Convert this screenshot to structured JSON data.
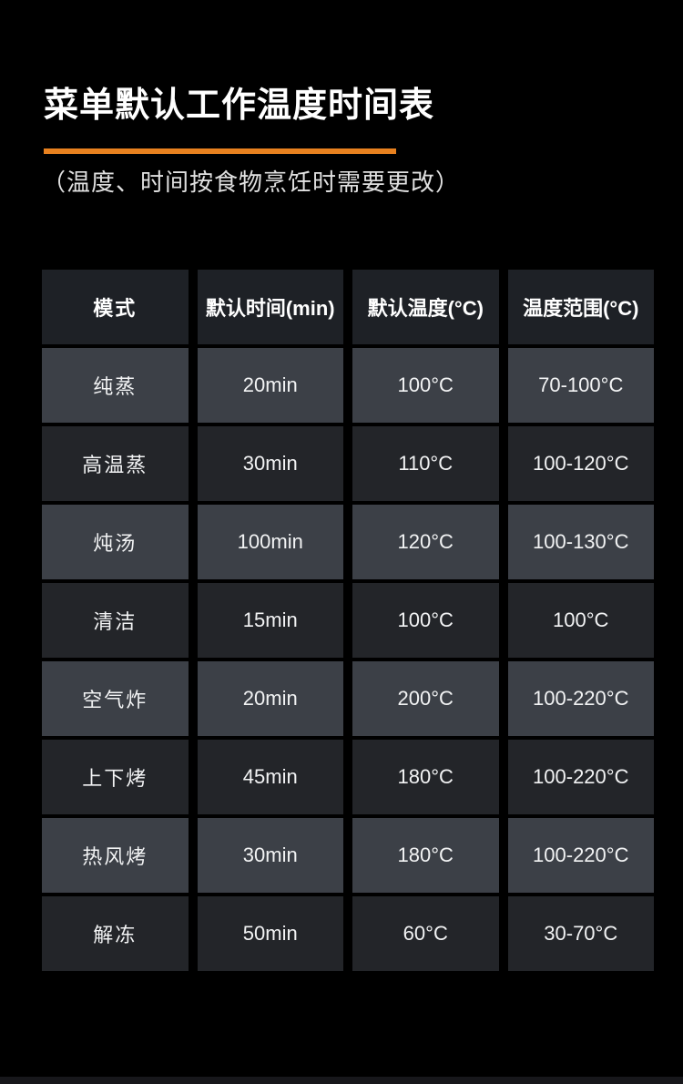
{
  "page": {
    "title": "菜单默认工作温度时间表",
    "subtitle": "（温度、时间按食物烹饪时需要更改）",
    "background_color": "#000000",
    "accent_color": "#e8811f",
    "light_row_color": "#3c4047",
    "dark_row_color": "#232529",
    "header_row_color": "#1e2126"
  },
  "table": {
    "columns": [
      "模式",
      "默认时间(min)",
      "默认温度(°C)",
      "温度范围(°C)"
    ],
    "rows": [
      {
        "mode": "纯蒸",
        "time": "20min",
        "temp": "100°C",
        "range": "70-100°C"
      },
      {
        "mode": "高温蒸",
        "time": "30min",
        "temp": "110°C",
        "range": "100-120°C"
      },
      {
        "mode": "炖汤",
        "time": "100min",
        "temp": "120°C",
        "range": "100-130°C"
      },
      {
        "mode": "清洁",
        "time": "15min",
        "temp": "100°C",
        "range": "100°C"
      },
      {
        "mode": "空气炸",
        "time": "20min",
        "temp": "200°C",
        "range": "100-220°C"
      },
      {
        "mode": "上下烤",
        "time": "45min",
        "temp": "180°C",
        "range": "100-220°C"
      },
      {
        "mode": "热风烤",
        "time": "30min",
        "temp": "180°C",
        "range": "100-220°C"
      },
      {
        "mode": "解冻",
        "time": "50min",
        "temp": "60°C",
        "range": "30-70°C"
      }
    ]
  }
}
